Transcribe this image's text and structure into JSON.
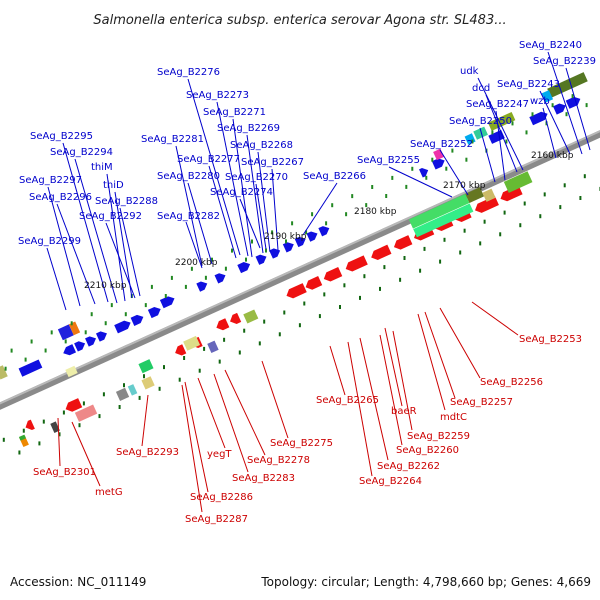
{
  "title": "Salmonella enterica subsp. enterica serovar Agona str. SL483...",
  "footer": {
    "accession": "Accession: NC_011149",
    "summary": "Topology: circular; Length: 4,798,660 bp; Genes: 4,669"
  },
  "colors": {
    "top_strand_label": "#0000cc",
    "bottom_strand_label": "#cc0000",
    "backbone": "#8a8a8a"
  },
  "scale_labels": [
    "2160 kbp",
    "2170 kbp",
    "2180 kbp",
    "2190 kbp",
    "2200 kbp",
    "2210 kbp"
  ],
  "top_labels": [
    "SeAg_B2240",
    "SeAg_B2239",
    "udk",
    "SeAg_B2243",
    "dcd",
    "SeAg_B2247",
    "wzb",
    "SeAg_B2250",
    "SeAg_B2252",
    "SeAg_B2255",
    "SeAg_B2266",
    "SeAg_B2276",
    "SeAg_B2273",
    "SeAg_B2271",
    "SeAg_B2269",
    "SeAg_B2268",
    "SeAg_B2267",
    "SeAg_B2270",
    "SeAg_B2274",
    "SeAg_B2277",
    "SeAg_B2280",
    "SeAg_B2281",
    "SeAg_B2282",
    "SeAg_B2295",
    "SeAg_B2294",
    "thiM",
    "thiD",
    "SeAg_B2288",
    "SeAg_B2297",
    "SeAg_B2296",
    "SeAg_B2292",
    "SeAg_B2299"
  ],
  "bottom_labels": [
    "SeAg_B2253",
    "SeAg_B2256",
    "SeAg_B2257",
    "mdtC",
    "baeR",
    "SeAg_B2259",
    "SeAg_B2260",
    "SeAg_B2262",
    "SeAg_B2264",
    "SeAg_B2265",
    "SeAg_B2275",
    "SeAg_B2278",
    "SeAg_B2283",
    "yegT",
    "SeAg_B2286",
    "SeAg_B2287",
    "SeAg_B2293",
    "metG",
    "SeAg_B2301"
  ]
}
